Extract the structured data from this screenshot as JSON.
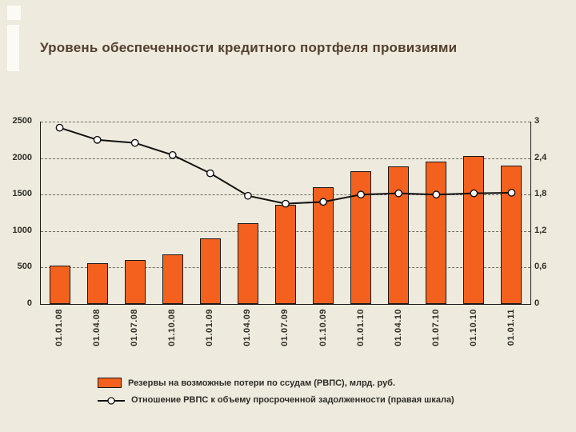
{
  "slide": {
    "title": "Уровень обеспеченности кредитного портфеля провизиями",
    "background_color": "#eeeadd"
  },
  "chart_data": {
    "type": "combo",
    "title": "Уровень обеспеченности кредитного портфеля провизиями",
    "categories": [
      "01.01.08",
      "01.04.08",
      "01.07.08",
      "01.10.08",
      "01.01.09",
      "01.04.09",
      "01.07.09",
      "01.10.09",
      "01.01.10",
      "01.04.10",
      "01.07.10",
      "01.10.10",
      "01.01.11"
    ],
    "series": [
      {
        "name": "Резервы на возможные потери по ссудам (РВПС), млрд. руб.",
        "type": "bar",
        "axis": "left",
        "color": "#f4611f",
        "values": [
          530,
          560,
          600,
          675,
          895,
          1110,
          1365,
          1600,
          1825,
          1890,
          1955,
          2030,
          1895
        ]
      },
      {
        "name": "Отношение РВПС к объему просроченной задолженности (правая шкала)",
        "type": "line",
        "axis": "right",
        "color": "#111111",
        "marker": "circle-white",
        "values": [
          2.9,
          2.7,
          2.65,
          2.45,
          2.15,
          1.78,
          1.65,
          1.68,
          1.8,
          1.82,
          1.8,
          1.82,
          1.83
        ]
      }
    ],
    "left_axis": {
      "min": 0,
      "max": 2500,
      "ticks": [
        0,
        500,
        1000,
        1500,
        2000,
        2500
      ],
      "labels": [
        "0",
        "500",
        "1000",
        "1500",
        "2000",
        "2500"
      ]
    },
    "right_axis": {
      "min": 0,
      "max": 3,
      "ticks": [
        0,
        0.6,
        1.2,
        1.8,
        2.4,
        3
      ],
      "labels": [
        "0",
        "0,6",
        "1,2",
        "1,8",
        "2,4",
        "3"
      ]
    },
    "grid": "dashed-horizontal",
    "legend_position": "bottom"
  }
}
